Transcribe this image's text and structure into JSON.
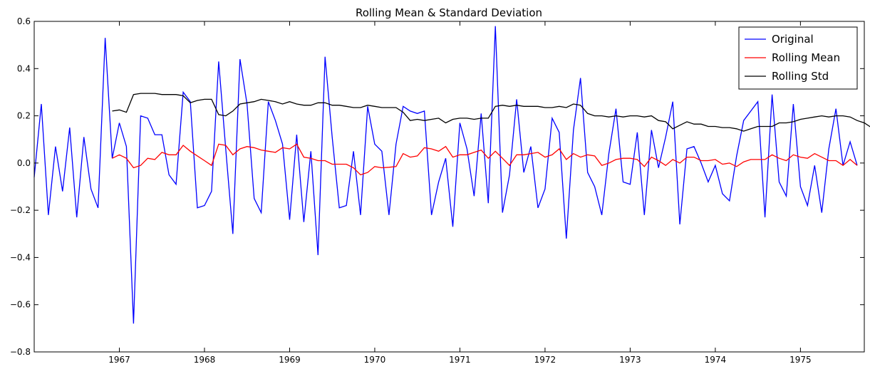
{
  "chart_data": {
    "type": "line",
    "title": "Rolling Mean & Standard Deviation",
    "xlabel": "",
    "ylabel": "",
    "xlim": [
      "1966-01",
      "1975-10"
    ],
    "ylim": [
      -0.8,
      0.6
    ],
    "grid": false,
    "legend_position": "top-right",
    "x_ticks": [
      "1967",
      "1968",
      "1969",
      "1970",
      "1971",
      "1972",
      "1973",
      "1974",
      "1975"
    ],
    "y_ticks": [
      "0.6",
      "0.4",
      "0.2",
      "0.0",
      "−0.2",
      "−0.4",
      "−0.6",
      "−0.8"
    ],
    "x_start": "1966-01",
    "x_step": "1 month",
    "series": [
      {
        "name": "Original",
        "color": "#0000ff",
        "values": [
          -0.06,
          0.25,
          -0.22,
          0.07,
          -0.12,
          0.15,
          -0.23,
          0.11,
          -0.11,
          -0.19,
          0.53,
          0.02,
          0.17,
          0.07,
          -0.68,
          0.2,
          0.19,
          0.12,
          0.12,
          -0.05,
          -0.09,
          0.3,
          0.26,
          -0.19,
          -0.18,
          -0.12,
          0.43,
          0.06,
          -0.3,
          0.44,
          0.25,
          -0.15,
          -0.21,
          0.26,
          0.18,
          0.08,
          -0.24,
          0.12,
          -0.25,
          0.05,
          -0.39,
          0.45,
          0.11,
          -0.19,
          -0.18,
          0.05,
          -0.22,
          0.24,
          0.08,
          0.05,
          -0.22,
          0.08,
          0.24,
          0.22,
          0.21,
          0.22,
          -0.22,
          -0.08,
          0.02,
          -0.27,
          0.17,
          0.06,
          -0.14,
          0.21,
          -0.17,
          0.58,
          -0.21,
          -0.05,
          0.27,
          -0.04,
          0.07,
          -0.19,
          -0.11,
          0.19,
          0.13,
          -0.32,
          0.14,
          0.36,
          -0.04,
          -0.1,
          -0.22,
          0.04,
          0.23,
          -0.08,
          -0.09,
          0.13,
          -0.22,
          0.14,
          -0.02,
          0.11,
          0.26,
          -0.26,
          0.06,
          0.07,
          0.0,
          -0.08,
          -0.01,
          -0.13,
          -0.16,
          0.03,
          0.18,
          0.22,
          0.26,
          -0.23,
          0.29,
          -0.08,
          -0.14,
          0.25,
          -0.1,
          -0.18,
          -0.01,
          -0.21,
          0.06,
          0.23,
          -0.01,
          0.09,
          -0.01
        ]
      },
      {
        "name": "Rolling Mean",
        "color": "#ff0000",
        "start_index": 11,
        "values": [
          0.02,
          0.035,
          0.02,
          -0.02,
          -0.01,
          0.02,
          0.015,
          0.045,
          0.035,
          0.035,
          0.075,
          0.05,
          0.03,
          0.01,
          -0.01,
          0.08,
          0.075,
          0.035,
          0.06,
          0.07,
          0.065,
          0.055,
          0.05,
          0.045,
          0.065,
          0.06,
          0.08,
          0.025,
          0.02,
          0.01,
          0.01,
          -0.005,
          -0.005,
          -0.005,
          -0.02,
          -0.05,
          -0.04,
          -0.015,
          -0.02,
          -0.018,
          -0.015,
          0.04,
          0.025,
          0.03,
          0.065,
          0.06,
          0.05,
          0.07,
          0.025,
          0.035,
          0.035,
          0.045,
          0.055,
          0.02,
          0.05,
          0.02,
          -0.01,
          0.035,
          0.035,
          0.04,
          0.045,
          0.025,
          0.035,
          0.06,
          0.015,
          0.04,
          0.025,
          0.035,
          0.03,
          -0.01,
          0.0,
          0.015,
          0.02,
          0.02,
          0.015,
          -0.015,
          0.025,
          0.01,
          -0.01,
          0.015,
          0.0,
          0.025,
          0.025,
          0.01,
          0.01,
          0.015,
          -0.005,
          0.0,
          -0.015,
          0.005,
          0.015,
          0.015,
          0.015,
          0.035,
          0.02,
          0.01,
          0.035,
          0.025,
          0.02,
          0.04,
          0.025,
          0.01,
          0.01,
          -0.01,
          0.015,
          -0.01
        ]
      },
      {
        "name": "Rolling Std",
        "color": "#000000",
        "start_index": 11,
        "values": [
          0.22,
          0.225,
          0.215,
          0.29,
          0.295,
          0.295,
          0.295,
          0.29,
          0.29,
          0.29,
          0.285,
          0.255,
          0.265,
          0.27,
          0.27,
          0.205,
          0.2,
          0.22,
          0.25,
          0.255,
          0.26,
          0.27,
          0.265,
          0.26,
          0.25,
          0.26,
          0.25,
          0.245,
          0.245,
          0.255,
          0.255,
          0.245,
          0.245,
          0.24,
          0.235,
          0.235,
          0.245,
          0.24,
          0.235,
          0.235,
          0.235,
          0.215,
          0.18,
          0.185,
          0.18,
          0.185,
          0.19,
          0.17,
          0.185,
          0.19,
          0.19,
          0.185,
          0.19,
          0.19,
          0.24,
          0.245,
          0.24,
          0.245,
          0.24,
          0.24,
          0.24,
          0.235,
          0.235,
          0.24,
          0.235,
          0.25,
          0.245,
          0.21,
          0.2,
          0.2,
          0.195,
          0.2,
          0.195,
          0.2,
          0.2,
          0.195,
          0.2,
          0.18,
          0.175,
          0.145,
          0.16,
          0.175,
          0.165,
          0.165,
          0.155,
          0.155,
          0.15,
          0.15,
          0.145,
          0.135,
          0.145,
          0.155,
          0.155,
          0.155,
          0.17,
          0.17,
          0.175,
          0.185,
          0.19,
          0.195,
          0.2,
          0.195,
          0.2,
          0.2,
          0.195,
          0.18,
          0.17,
          0.15
        ]
      }
    ]
  }
}
